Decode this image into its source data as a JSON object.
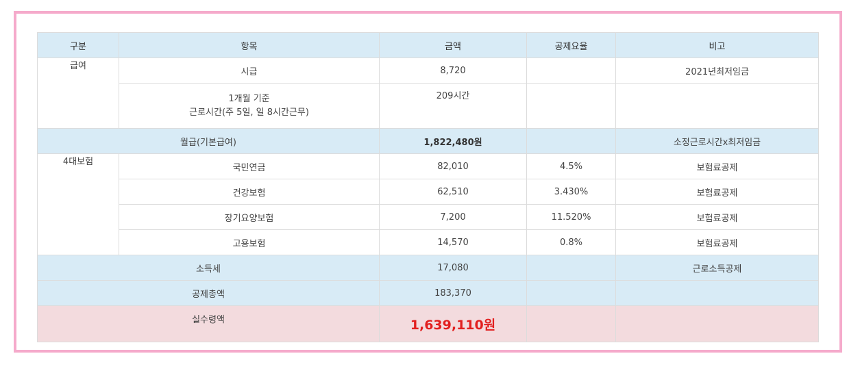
{
  "colors": {
    "frame_border": "#f5aacb",
    "header_bg": "#d8ebf6",
    "pink_row_bg": "#f3dbde",
    "net_amount": "#e21f1f"
  },
  "headers": [
    "구분",
    "항목",
    "금액",
    "공제요율",
    "비고"
  ],
  "salary": {
    "category": "급여",
    "hourly": {
      "item": "시급",
      "amount": "8,720",
      "rate": "",
      "note": "2021년최저임금"
    },
    "hours": {
      "item_line1": "1개월 기준",
      "item_line2": "근로시간(주 5일, 일 8시간근무)",
      "amount": "209시간",
      "rate": "",
      "note": ""
    }
  },
  "monthly": {
    "item": "월급(기본급여)",
    "amount": "1,822,480원",
    "rate": "",
    "note": "소정근로시간x최저임금"
  },
  "insurance": {
    "category": "4대보험",
    "rows": [
      {
        "item": "국민연금",
        "amount": "82,010",
        "rate": "4.5%",
        "note": "보험료공제"
      },
      {
        "item": "건강보험",
        "amount": "62,510",
        "rate": "3.430%",
        "note": "보험료공제"
      },
      {
        "item": "장기요양보험",
        "amount": "7,200",
        "rate": "11.520%",
        "note": "보험료공제"
      },
      {
        "item": "고용보험",
        "amount": "14,570",
        "rate": "0.8%",
        "note": "보험료공제"
      }
    ]
  },
  "income_tax": {
    "item": "소득세",
    "amount": "17,080",
    "rate": "",
    "note": "근로소득공제"
  },
  "total_deduction": {
    "item": "공제총액",
    "amount": "183,370",
    "rate": "",
    "note": ""
  },
  "net_pay": {
    "item": "실수령액",
    "amount": "1,639,110원",
    "rate": "",
    "note": ""
  }
}
